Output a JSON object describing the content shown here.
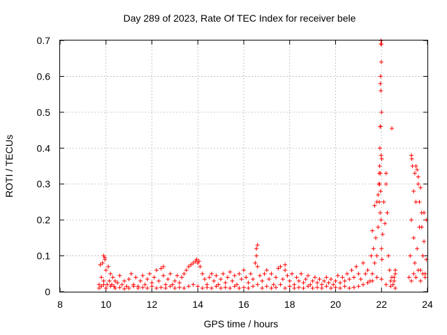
{
  "chart_data": {
    "type": "scatter",
    "title": "Day 289 of 2023, Rate Of TEC Index for receiver bele",
    "xlabel": "GPS time / hours",
    "ylabel": "ROTI / TECUs",
    "xlim": [
      8,
      24
    ],
    "ylim": [
      0,
      0.7
    ],
    "x_ticks": [
      "8",
      "10",
      "12",
      "14",
      "16",
      "18",
      "20",
      "22",
      "24"
    ],
    "y_ticks": [
      "0",
      "0.1",
      "0.2",
      "0.3",
      "0.4",
      "0.5",
      "0.6",
      "0.7"
    ],
    "grid": true,
    "marker": "plus",
    "color": "#ff0000",
    "series": [
      {
        "x": [
          9.7,
          9.75,
          9.8,
          9.85,
          9.9,
          9.95,
          10.0,
          10.05,
          10.1,
          10.15,
          10.2,
          10.25,
          10.3,
          10.35,
          10.4,
          10.5,
          10.6,
          10.7,
          10.8,
          10.9,
          11.0,
          11.1,
          11.2,
          11.3,
          11.4,
          11.5,
          11.6,
          11.7,
          11.8,
          11.9,
          12.0,
          12.1,
          12.2,
          12.3,
          12.4,
          12.5,
          12.6,
          12.7,
          12.8,
          12.9,
          13.0,
          13.1,
          13.2,
          13.3,
          13.4,
          13.5,
          13.6,
          13.7,
          13.8,
          13.9,
          14.0,
          14.1,
          14.2,
          14.3,
          14.4,
          14.5,
          14.6,
          14.7,
          14.8,
          14.9,
          15.0,
          15.1,
          15.2,
          15.3,
          15.4,
          15.5,
          15.6,
          15.7,
          15.8,
          15.9,
          16.0,
          16.1,
          16.2,
          16.3,
          16.4,
          16.5,
          16.55,
          16.6,
          16.7,
          16.8,
          16.9,
          17.0,
          17.1,
          17.2,
          17.3,
          17.4,
          17.5,
          17.6,
          17.7,
          17.8,
          17.9,
          18.0,
          18.1,
          18.2,
          18.3,
          18.4,
          18.5,
          18.6,
          18.7,
          18.8,
          18.9,
          19.0,
          19.1,
          19.2,
          19.3,
          19.4,
          19.5,
          19.6,
          19.7,
          19.8,
          19.9,
          20.0,
          20.1,
          20.2,
          20.3,
          20.4,
          20.5,
          20.6,
          20.7,
          20.8,
          20.9,
          21.0,
          21.1,
          21.2,
          21.3,
          21.4,
          21.5,
          21.55,
          21.6,
          21.65,
          21.7,
          21.75,
          21.8,
          21.85,
          21.9,
          21.92,
          21.94,
          21.96,
          21.98,
          22.0,
          22.02,
          22.05,
          22.1,
          22.15,
          22.2,
          22.25,
          22.3,
          22.35,
          22.4,
          22.45,
          22.5,
          22.55,
          22.6,
          23.2,
          23.25,
          23.3,
          23.35,
          23.4,
          23.45,
          23.5,
          23.55,
          23.6,
          23.65,
          23.7,
          23.75,
          23.8,
          23.85,
          23.9,
          23.95,
          9.7,
          9.8,
          9.9,
          10.0,
          10.2,
          10.4,
          10.6,
          10.8,
          11.0,
          11.2,
          11.4,
          11.6,
          11.8,
          12.0,
          12.2,
          12.4,
          12.6,
          12.8,
          13.0,
          13.2,
          13.4,
          13.6,
          13.8,
          14.0,
          14.2,
          14.4,
          14.6,
          14.8,
          15.0,
          15.2,
          15.4,
          15.6,
          15.8,
          16.0,
          16.2,
          16.4,
          16.6,
          16.8,
          17.0,
          17.2,
          17.4,
          17.6,
          17.8,
          18.0,
          18.2,
          18.4,
          18.6,
          18.8,
          19.0,
          19.2,
          19.4,
          19.6,
          19.8,
          20.0,
          20.2,
          20.4,
          20.6,
          20.8,
          21.0,
          21.2,
          21.4,
          21.6,
          21.8,
          22.0,
          22.2,
          22.4,
          22.6,
          23.3,
          23.4,
          23.5,
          23.6,
          23.7,
          23.8,
          23.9,
          21.97,
          21.98,
          22.0,
          21.99,
          21.96,
          21.95,
          21.97,
          22.0,
          21.94,
          21.96,
          21.93,
          21.98,
          22.01,
          21.92,
          21.95,
          22.45,
          21.9,
          21.88,
          21.85,
          21.8,
          23.3,
          23.32,
          23.45,
          23.5,
          23.55,
          23.6,
          23.4,
          23.65,
          23.7,
          22.6,
          22.55,
          16.55,
          16.6,
          13.95,
          14.05,
          9.9,
          9.95,
          17.8,
          12.5,
          23.85,
          23.95,
          23.75,
          21.7,
          21.6,
          22.2
        ],
        "y": [
          0.02,
          0.075,
          0.04,
          0.08,
          0.03,
          0.095,
          0.06,
          0.02,
          0.07,
          0.03,
          0.05,
          0.02,
          0.04,
          0.015,
          0.03,
          0.025,
          0.045,
          0.02,
          0.03,
          0.015,
          0.035,
          0.05,
          0.02,
          0.04,
          0.015,
          0.03,
          0.045,
          0.02,
          0.035,
          0.05,
          0.025,
          0.04,
          0.06,
          0.03,
          0.065,
          0.045,
          0.02,
          0.035,
          0.05,
          0.02,
          0.03,
          0.045,
          0.025,
          0.04,
          0.05,
          0.06,
          0.07,
          0.075,
          0.08,
          0.085,
          0.08,
          0.07,
          0.05,
          0.035,
          0.02,
          0.04,
          0.05,
          0.03,
          0.045,
          0.02,
          0.035,
          0.05,
          0.025,
          0.04,
          0.055,
          0.03,
          0.045,
          0.02,
          0.05,
          0.035,
          0.06,
          0.04,
          0.025,
          0.05,
          0.035,
          0.08,
          0.12,
          0.07,
          0.045,
          0.03,
          0.05,
          0.06,
          0.035,
          0.05,
          0.02,
          0.04,
          0.065,
          0.07,
          0.035,
          0.06,
          0.045,
          0.03,
          0.05,
          0.02,
          0.04,
          0.03,
          0.05,
          0.025,
          0.035,
          0.045,
          0.02,
          0.03,
          0.04,
          0.025,
          0.035,
          0.02,
          0.03,
          0.04,
          0.025,
          0.035,
          0.02,
          0.03,
          0.045,
          0.025,
          0.04,
          0.03,
          0.05,
          0.035,
          0.06,
          0.04,
          0.07,
          0.05,
          0.035,
          0.08,
          0.05,
          0.06,
          0.03,
          0.1,
          0.05,
          0.12,
          0.08,
          0.15,
          0.1,
          0.18,
          0.25,
          0.3,
          0.22,
          0.28,
          0.2,
          0.12,
          0.09,
          0.16,
          0.25,
          0.19,
          0.3,
          0.22,
          0.1,
          0.06,
          0.03,
          0.04,
          0.02,
          0.03,
          0.05,
          0.04,
          0.1,
          0.2,
          0.35,
          0.15,
          0.08,
          0.25,
          0.12,
          0.3,
          0.18,
          0.06,
          0.22,
          0.1,
          0.14,
          0.05,
          0.09,
          0.01,
          0.015,
          0.02,
          0.01,
          0.015,
          0.01,
          0.012,
          0.008,
          0.01,
          0.015,
          0.01,
          0.012,
          0.01,
          0.015,
          0.01,
          0.012,
          0.01,
          0.015,
          0.01,
          0.012,
          0.01,
          0.015,
          0.02,
          0.015,
          0.01,
          0.012,
          0.01,
          0.015,
          0.01,
          0.012,
          0.01,
          0.015,
          0.01,
          0.012,
          0.01,
          0.015,
          0.02,
          0.01,
          0.015,
          0.01,
          0.012,
          0.02,
          0.01,
          0.015,
          0.01,
          0.012,
          0.01,
          0.015,
          0.01,
          0.012,
          0.01,
          0.015,
          0.01,
          0.012,
          0.01,
          0.015,
          0.01,
          0.012,
          0.015,
          0.02,
          0.025,
          0.03,
          0.04,
          0.035,
          0.02,
          0.015,
          0.01,
          0.03,
          0.05,
          0.04,
          0.06,
          0.03,
          0.05,
          0.04,
          0.69,
          0.7,
          0.69,
          0.64,
          0.6,
          0.58,
          0.56,
          0.5,
          0.46,
          0.46,
          0.4,
          0.38,
          0.37,
          0.35,
          0.33,
          0.455,
          0.33,
          0.3,
          0.27,
          0.25,
          0.38,
          0.37,
          0.33,
          0.35,
          0.34,
          0.32,
          0.28,
          0.25,
          0.29,
          0.06,
          0.04,
          0.1,
          0.13,
          0.09,
          0.085,
          0.1,
          0.09,
          0.075,
          0.07,
          0.22,
          0.2,
          0.18,
          0.24,
          0.17,
          0.33
        ]
      }
    ]
  }
}
